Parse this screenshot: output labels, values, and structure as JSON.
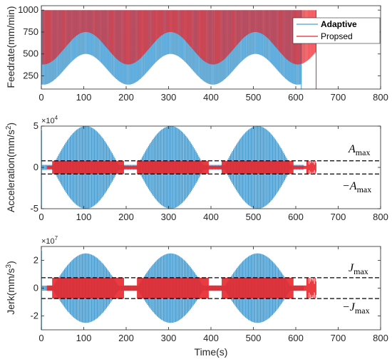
{
  "chart_data": [
    {
      "type": "line",
      "panel": "feedrate",
      "ylabel": "Feedrate(mm/min)",
      "xlim": [
        0,
        800
      ],
      "ylim": [
        100,
        1050
      ],
      "yticks": [
        250,
        500,
        750,
        1000
      ],
      "xticks": [
        0,
        100,
        200,
        300,
        400,
        500,
        600,
        700,
        800
      ],
      "legend": {
        "placement": "top-right",
        "entries": [
          {
            "label": "Adaptive",
            "color": "#4a9fd4"
          },
          {
            "label": "Propsed",
            "color": "#e8262b"
          }
        ]
      },
      "series": [
        {
          "name": "Adaptive",
          "color": "#4a9fd4",
          "t_end": 613,
          "description_values": {
            "upper": 1000,
            "lower_envelope_min": 150,
            "lower_envelope_max": 500,
            "period": 200
          }
        },
        {
          "name": "Propsed",
          "color": "#e8262b",
          "t_end": 648,
          "description_values": {
            "upper": 1000,
            "lower_envelope_min": 380,
            "lower_envelope_max": 750,
            "period": 200
          }
        }
      ]
    },
    {
      "type": "line",
      "panel": "acceleration",
      "ylabel": "Acceleration(mm/s²)",
      "ylabel_main": "Acceleration(mm/s",
      "ylabel_sup": "2",
      "ylabel_end": ")",
      "exponent_base": "×10",
      "exponent_power": "4",
      "xlim": [
        0,
        800
      ],
      "ylim": [
        -5,
        5
      ],
      "yticks": [
        -5,
        0,
        5
      ],
      "xticks": [
        0,
        100,
        200,
        300,
        400,
        500,
        600,
        700,
        800
      ],
      "limit": 0.8,
      "annotations": {
        "upper": "A",
        "upper_sub": "max",
        "lower": "−A",
        "lower_sub": "max"
      },
      "series": [
        {
          "name": "Adaptive",
          "color": "#4a9fd4",
          "peaks": [
            {
              "t": 105,
              "a": 5
            },
            {
              "t": 305,
              "a": 5
            },
            {
              "t": 510,
              "a": 5
            }
          ],
          "half_width": 80
        },
        {
          "name": "Propsed",
          "color": "#e8262b",
          "limit": 0.8,
          "t_end": 648
        }
      ]
    },
    {
      "type": "line",
      "panel": "jerk",
      "ylabel": "Jerk(mm/s³)",
      "ylabel_main": "Jerk(mm/s",
      "ylabel_sup": "3",
      "ylabel_end": ")",
      "exponent_base": "×10",
      "exponent_power": "7",
      "xlabel": "Time(s)",
      "xlim": [
        0,
        800
      ],
      "ylim": [
        -3,
        3
      ],
      "yticks": [
        -2,
        0,
        2
      ],
      "xticks": [
        0,
        100,
        200,
        300,
        400,
        500,
        600,
        700,
        800
      ],
      "limit": 0.75,
      "annotations": {
        "upper": "J",
        "upper_sub": "max",
        "lower": "−J",
        "lower_sub": "max"
      },
      "series": [
        {
          "name": "Adaptive",
          "color": "#4a9fd4",
          "peaks": [
            {
              "t": 105,
              "a": 2.5
            },
            {
              "t": 305,
              "a": 2.5
            },
            {
              "t": 510,
              "a": 2.5
            }
          ],
          "half_width": 80
        },
        {
          "name": "Propsed",
          "color": "#e8262b",
          "limit": 0.75,
          "t_end": 648
        }
      ]
    }
  ]
}
